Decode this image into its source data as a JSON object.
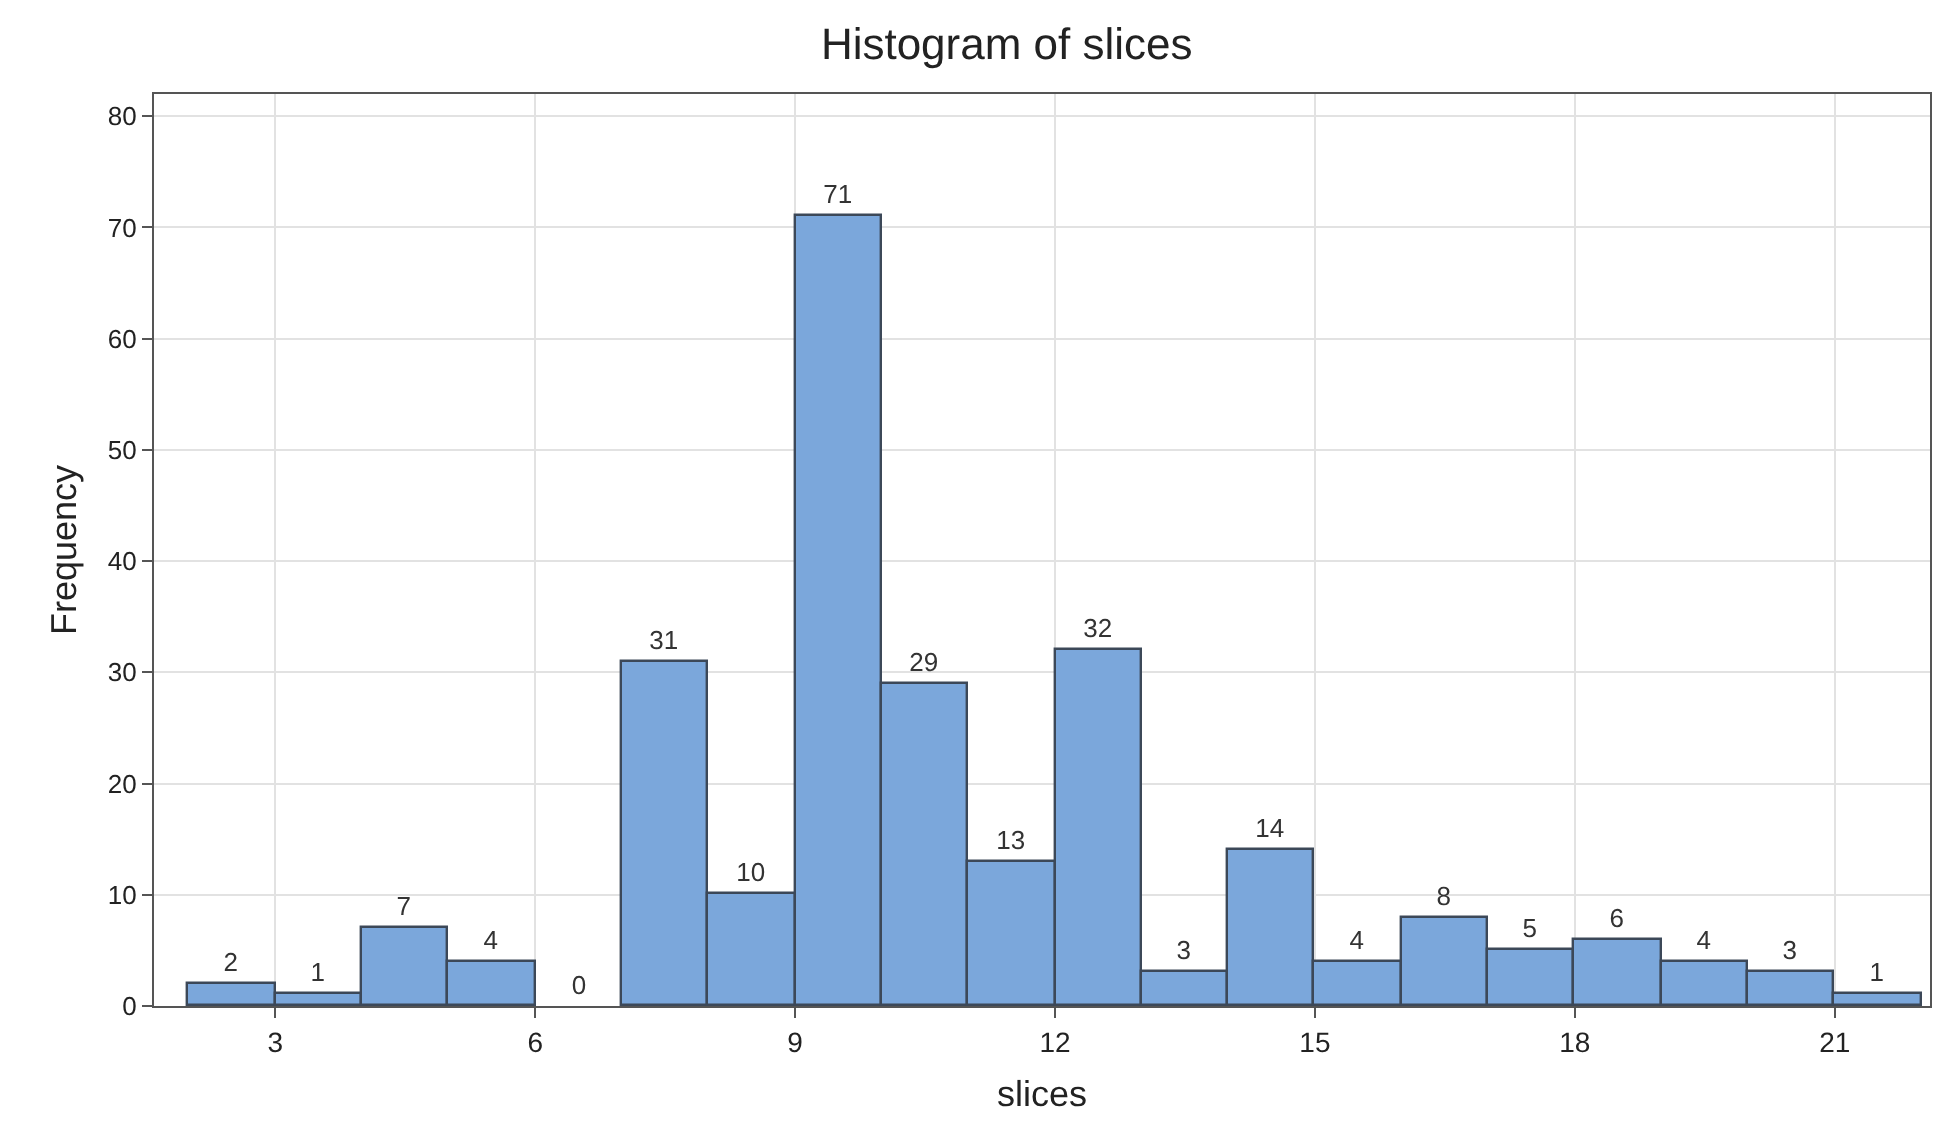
{
  "chart_data": {
    "type": "histogram",
    "title": "Histogram of slices",
    "xlabel": "slices",
    "ylabel": "Frequency",
    "bins": [
      2,
      3,
      4,
      5,
      6,
      7,
      8,
      9,
      10,
      11,
      12,
      13,
      14,
      15,
      16,
      17,
      18,
      19,
      20,
      21,
      22
    ],
    "values": [
      2,
      1,
      7,
      4,
      0,
      31,
      10,
      71,
      29,
      13,
      32,
      3,
      14,
      4,
      8,
      5,
      6,
      4,
      3,
      1
    ],
    "color": "#7ba7db",
    "xlim": [
      1.6,
      22.1
    ],
    "xticks": [
      3,
      6,
      9,
      12,
      15,
      18,
      21
    ],
    "ylim": [
      0,
      82
    ],
    "yticks": [
      0,
      10,
      20,
      30,
      40,
      50,
      60,
      70,
      80
    ],
    "grid": true,
    "data_labels": true
  }
}
